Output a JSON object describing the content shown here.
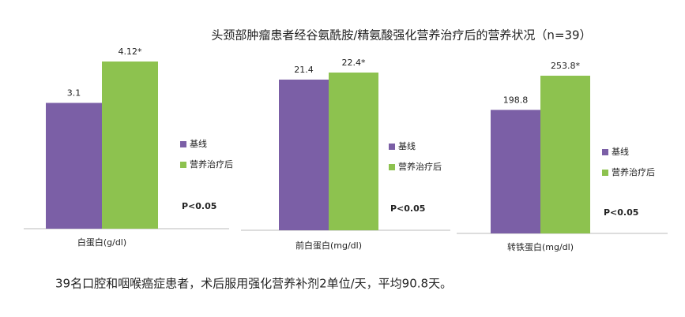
{
  "title": "头颈部肿瘤患者经谷氨酰胺/精氨酸强化营养治疗后的营养状况（n=39）",
  "footnote": "39名口腔和咽喉癌症患者，术后服用强化营养补剂2单位/天，平均90.8天。",
  "chart_data": [
    {
      "type": "bar",
      "categories": [
        "白蛋白(g/dl)"
      ],
      "series": [
        {
          "name": "基线",
          "color": "#7b5fa6",
          "values": [
            3.1
          ]
        },
        {
          "name": "营养治疗后",
          "color": "#8dc24f",
          "values": [
            4.12
          ],
          "value_labels": [
            "4.12*"
          ]
        }
      ],
      "annotation": "P<0.05"
    },
    {
      "type": "bar",
      "categories": [
        "前白蛋白(mg/dl)"
      ],
      "series": [
        {
          "name": "基线",
          "color": "#7b5fa6",
          "values": [
            21.4
          ]
        },
        {
          "name": "营养治疗后",
          "color": "#8dc24f",
          "values": [
            22.4
          ],
          "value_labels": [
            "22.4*"
          ]
        }
      ],
      "annotation": "P<0.05"
    },
    {
      "type": "bar",
      "categories": [
        "转铁蛋白(mg/dl)"
      ],
      "series": [
        {
          "name": "基线",
          "color": "#7b5fa6",
          "values": [
            198.8
          ]
        },
        {
          "name": "营养治疗后",
          "color": "#8dc24f",
          "values": [
            253.8
          ],
          "value_labels": [
            "253.8*"
          ]
        }
      ],
      "annotation": "P<0.05"
    }
  ]
}
